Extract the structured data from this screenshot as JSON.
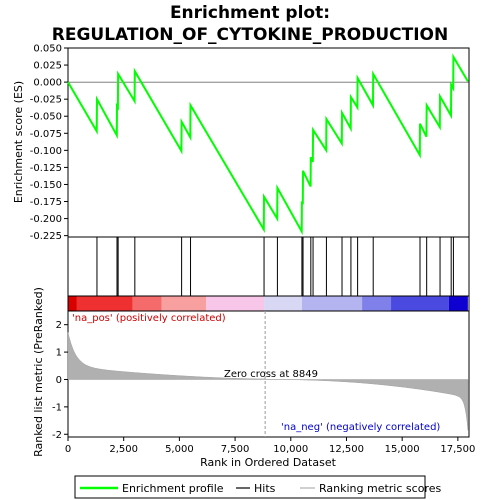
{
  "title_line1": "Enrichment plot:",
  "title_line2": "REGULATION_OF_CYTOKINE_PRODUCTION",
  "chart_data": {
    "type": "line",
    "x_label": "Rank in Ordered Dataset",
    "es_ylabel": "Enrichment score (ES)",
    "metric_ylabel": "Ranked list metric (PreRanked)",
    "x_range": [
      0,
      18000
    ],
    "x_ticks": [
      0,
      2500,
      5000,
      7500,
      10000,
      12500,
      15000,
      17500
    ],
    "x_tick_labels": [
      "0",
      "2,500",
      "5,000",
      "7,500",
      "10,000",
      "12,500",
      "15,000",
      "17,500"
    ],
    "es_range": [
      -0.225,
      0.05
    ],
    "es_ticks": [
      0.05,
      0.025,
      0.0,
      -0.025,
      -0.05,
      -0.075,
      -0.1,
      -0.125,
      -0.15,
      -0.175,
      -0.2,
      -0.225
    ],
    "es_tick_labels": [
      "0.050",
      "0.025",
      "0.000",
      "-0.025",
      "-0.050",
      "-0.075",
      "-0.100",
      "-0.125",
      "-0.150",
      "-0.175",
      "-0.200",
      "-0.225"
    ],
    "metric_range": [
      -2,
      2.5
    ],
    "metric_ticks": [
      2,
      1,
      0,
      -1,
      -2
    ],
    "metric_tick_labels": [
      "2",
      "1",
      "0",
      "-1",
      "-2"
    ],
    "total_genes": 17950,
    "zero_cross": 8849,
    "zero_cross_label": "Zero cross at 8849",
    "pos_label": "'na_pos' (positively correlated)",
    "neg_label": "'na_neg' (negatively correlated)",
    "hits": [
      1300,
      2200,
      2250,
      3000,
      5100,
      5500,
      8800,
      9400,
      10500,
      10550,
      10900,
      11000,
      11600,
      12300,
      12700,
      13000,
      13700,
      15800,
      16100,
      16700,
      17200,
      17300
    ],
    "es_profile": {
      "x": [
        0,
        1290,
        1300,
        2190,
        2200,
        2240,
        2250,
        2990,
        3000,
        5090,
        5100,
        5490,
        5500,
        8790,
        8800,
        9390,
        9400,
        10490,
        10500,
        10540,
        10550,
        10890,
        10900,
        10990,
        11000,
        11590,
        11600,
        12290,
        12300,
        12690,
        12700,
        12990,
        13000,
        13690,
        13700,
        15790,
        15800,
        16090,
        16100,
        16690,
        16700,
        17190,
        17200,
        17290,
        17300,
        17950
      ],
      "y": [
        0.0,
        -0.072,
        -0.025,
        -0.078,
        -0.035,
        -0.037,
        0.012,
        -0.028,
        0.016,
        -0.101,
        -0.058,
        -0.081,
        -0.034,
        -0.216,
        -0.168,
        -0.2,
        -0.155,
        -0.219,
        -0.175,
        -0.179,
        -0.13,
        -0.153,
        -0.11,
        -0.117,
        -0.07,
        -0.1,
        -0.054,
        -0.09,
        -0.045,
        -0.068,
        -0.022,
        -0.037,
        0.006,
        -0.034,
        0.012,
        -0.107,
        -0.061,
        -0.08,
        -0.034,
        -0.066,
        -0.021,
        -0.049,
        -0.004,
        -0.009,
        0.037,
        0.001
      ]
    },
    "heatmap_colors": [
      "#d90000",
      "#ee3030",
      "#f56b6b",
      "#f8a0a0",
      "#f8c6e8",
      "#d8d8f5",
      "#b4b4f0",
      "#8080ea",
      "#4a4ae0",
      "#0d00d0"
    ],
    "legend": [
      "Enrichment profile",
      "Hits",
      "Ranking metric scores"
    ],
    "colors": {
      "profile": "#00ff00",
      "hits": "#000000",
      "metric": "#b0b0b0",
      "pos_text": "#cc0000",
      "neg_text": "#0000cc"
    }
  }
}
